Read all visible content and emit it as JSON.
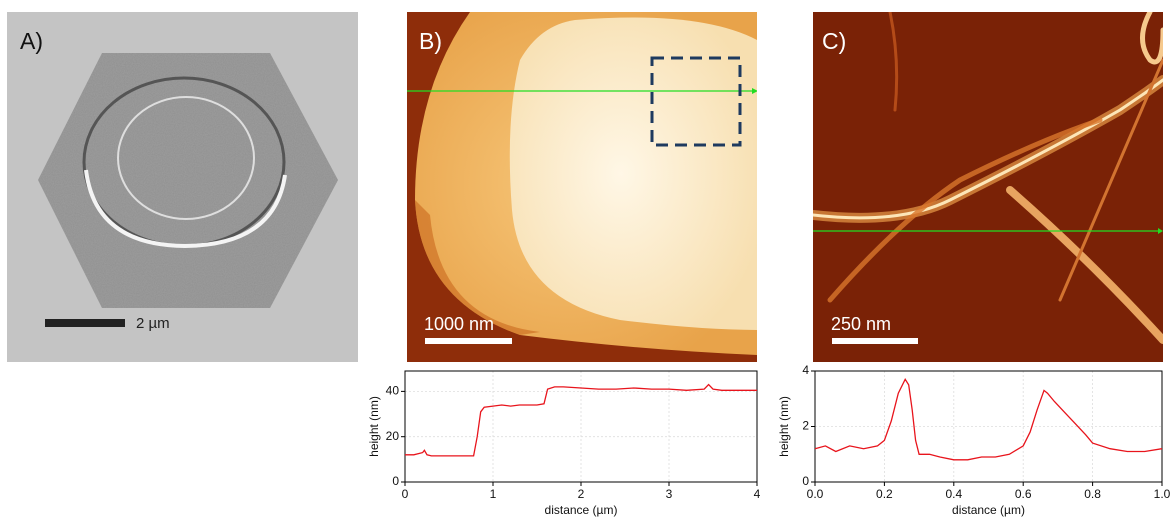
{
  "panels": [
    {
      "label": "A)",
      "scale_bar": "2 µm"
    },
    {
      "label": "B)",
      "scale_bar": "1000 nm"
    },
    {
      "label": "C)",
      "scale_bar": "250 nm"
    }
  ],
  "chart_data": [
    {
      "type": "line",
      "xlabel": "distance (µm)",
      "ylabel": "height (nm)",
      "xlim": [
        0,
        4
      ],
      "ylim": [
        0,
        49
      ],
      "xticks": [
        0,
        1,
        2,
        3,
        4
      ],
      "yticks": [
        0,
        20,
        40
      ],
      "grid": true,
      "color": "#e8141c",
      "x": [
        0,
        0.1,
        0.2,
        0.22,
        0.25,
        0.3,
        0.4,
        0.5,
        0.6,
        0.7,
        0.78,
        0.82,
        0.86,
        0.9,
        1.0,
        1.1,
        1.2,
        1.3,
        1.4,
        1.5,
        1.58,
        1.62,
        1.7,
        1.8,
        2.0,
        2.2,
        2.4,
        2.6,
        2.8,
        3.0,
        3.2,
        3.4,
        3.45,
        3.5,
        3.6,
        3.8,
        4.0
      ],
      "values": [
        12,
        12,
        13,
        14,
        12,
        11.5,
        11.5,
        11.5,
        11.5,
        11.5,
        11.5,
        20,
        31,
        33,
        33.5,
        34,
        33.5,
        34,
        34,
        34,
        34.5,
        41,
        42,
        42,
        41.5,
        41,
        41,
        41.5,
        41,
        41,
        40.5,
        41,
        43,
        41,
        40.5,
        40.5,
        40.5
      ]
    },
    {
      "type": "line",
      "xlabel": "distance (µm)",
      "ylabel": "height (nm)",
      "xlim": [
        0,
        1
      ],
      "ylim": [
        0,
        4
      ],
      "xticks": [
        {
          "value": 0,
          "label": "0.0"
        },
        0.2,
        0.4,
        0.6,
        0.8,
        {
          "value": 1,
          "label": "1.0"
        }
      ],
      "yticks": [
        0,
        2,
        4
      ],
      "grid": true,
      "color": "#e8141c",
      "x": [
        0,
        0.03,
        0.06,
        0.1,
        0.14,
        0.18,
        0.2,
        0.22,
        0.24,
        0.26,
        0.27,
        0.28,
        0.29,
        0.3,
        0.33,
        0.36,
        0.4,
        0.44,
        0.48,
        0.52,
        0.56,
        0.6,
        0.62,
        0.64,
        0.66,
        0.67,
        0.69,
        0.72,
        0.75,
        0.78,
        0.8,
        0.85,
        0.9,
        0.95,
        1.0
      ],
      "values": [
        1.2,
        1.3,
        1.1,
        1.3,
        1.2,
        1.3,
        1.5,
        2.2,
        3.2,
        3.7,
        3.5,
        2.6,
        1.5,
        1.0,
        1.0,
        0.9,
        0.8,
        0.8,
        0.9,
        0.9,
        1.0,
        1.3,
        1.8,
        2.6,
        3.3,
        3.2,
        2.9,
        2.5,
        2.1,
        1.7,
        1.4,
        1.2,
        1.1,
        1.1,
        1.2
      ]
    }
  ]
}
